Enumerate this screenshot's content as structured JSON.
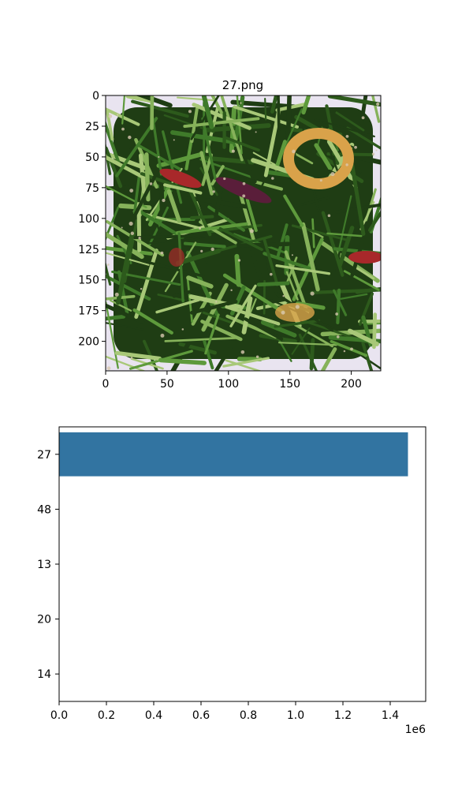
{
  "figure": {
    "image_panel": {
      "title": "27.png",
      "x_ticks": [
        0,
        50,
        100,
        150,
        200
      ],
      "y_ticks": [
        0,
        25,
        50,
        75,
        100,
        125,
        150,
        175,
        200
      ],
      "extent": [
        224,
        224
      ],
      "image_description_colors": {
        "background": "#e9e4f0",
        "greens": [
          "#1f3d14",
          "#2d5a1c",
          "#3f7a2a",
          "#5e9a3c",
          "#86b25a",
          "#a8c878"
        ],
        "red": "#a8282a",
        "purple": "#5a1e3a",
        "orange": "#d9a24a"
      }
    }
  },
  "chart_data": {
    "type": "bar",
    "orientation": "horizontal",
    "categories": [
      "27",
      "48",
      "13",
      "20",
      "14"
    ],
    "values": [
      1475000,
      0,
      0,
      0,
      0
    ],
    "xlim": [
      0,
      1550000
    ],
    "x_ticks": [
      0,
      0.2,
      0.4,
      0.6,
      0.8,
      1.0,
      1.2,
      1.4
    ],
    "x_tick_labels": [
      "0.0",
      "0.2",
      "0.4",
      "0.6",
      "0.8",
      "1.0",
      "1.2",
      "1.4"
    ],
    "x_scale_label": "1e6",
    "bar_color": "#3274a1",
    "title": "",
    "xlabel": "",
    "ylabel": ""
  }
}
